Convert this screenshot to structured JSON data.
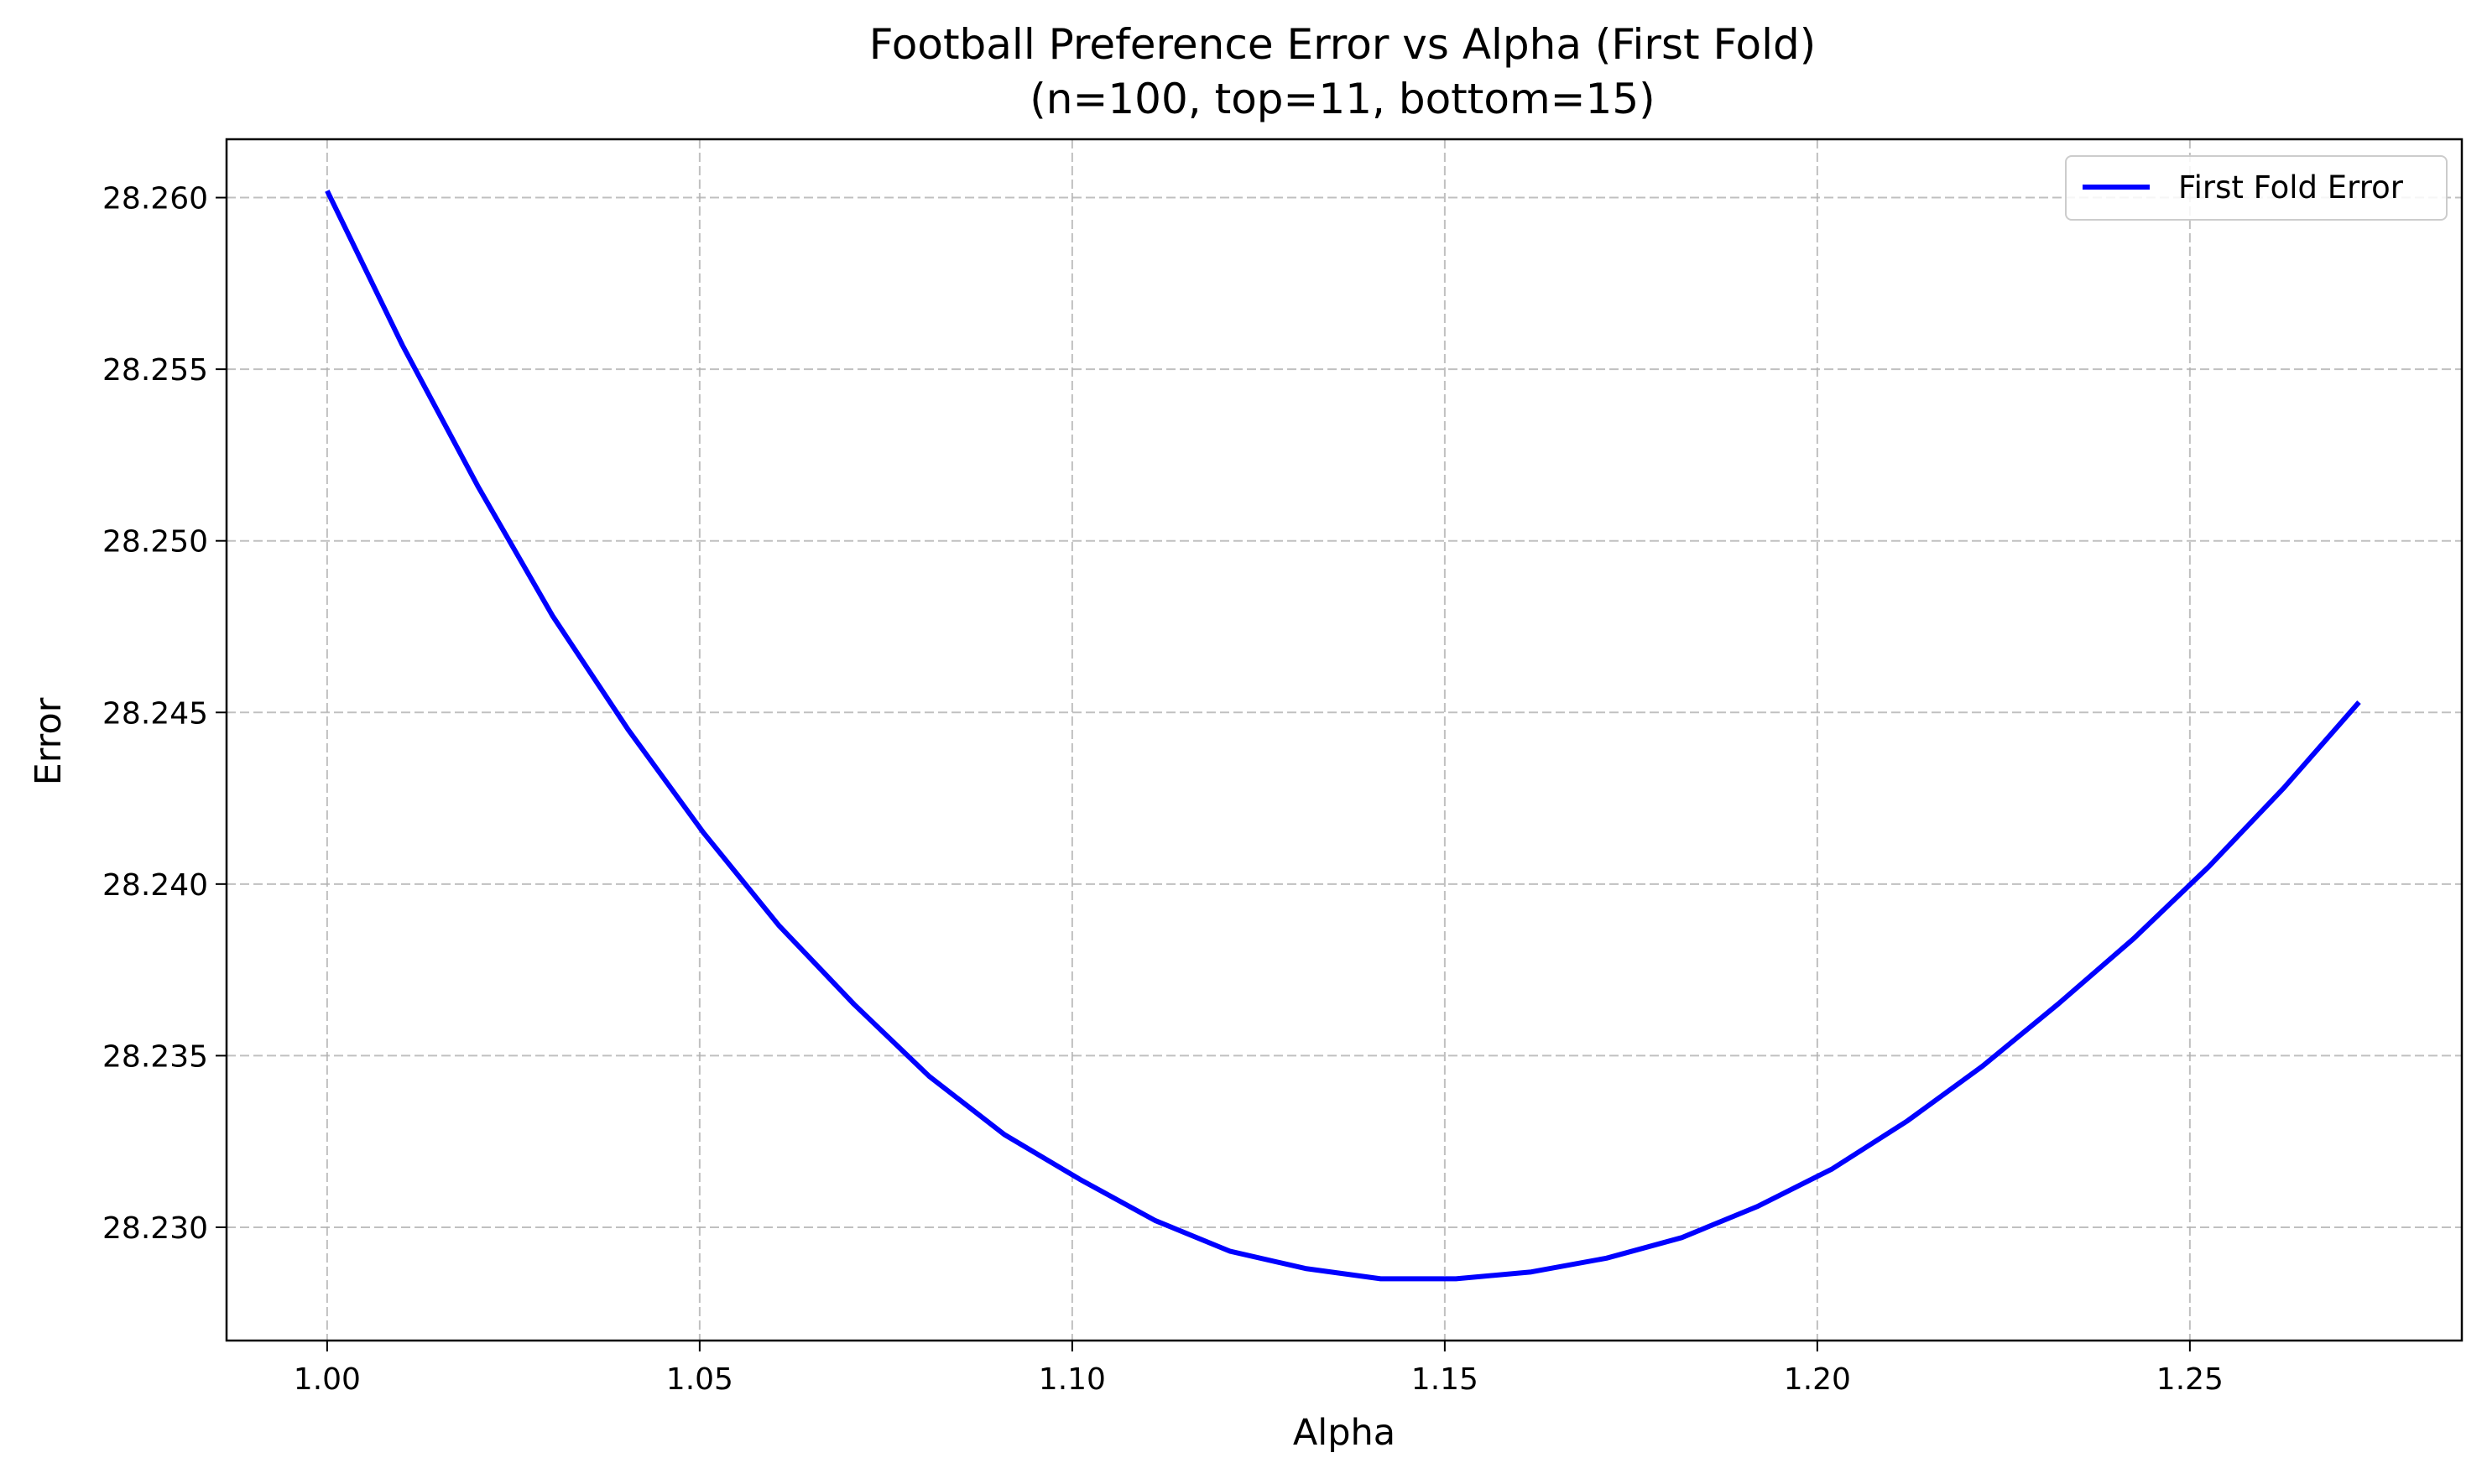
{
  "chart_data": {
    "type": "line",
    "title": "Football Preference Error vs Alpha (First Fold)",
    "subtitle": "(n=100, top=11, bottom=15)",
    "xlabel": "Alpha",
    "ylabel": "Error",
    "xlim": [
      0.9865,
      1.2865
    ],
    "ylim": [
      28.2267,
      28.2617
    ],
    "xticks": [
      1.0,
      1.05,
      1.1,
      1.15,
      1.2,
      1.25
    ],
    "xtick_labels": [
      "1.00",
      "1.05",
      "1.10",
      "1.15",
      "1.20",
      "1.25"
    ],
    "yticks": [
      28.23,
      28.235,
      28.24,
      28.245,
      28.25,
      28.255,
      28.26
    ],
    "ytick_labels": [
      "28.230",
      "28.235",
      "28.240",
      "28.245",
      "28.250",
      "28.255",
      "28.260"
    ],
    "grid": true,
    "legend_position": "top-right",
    "series": [
      {
        "name": "First Fold Error",
        "color": "#0000ff",
        "x": [
          1.0,
          1.0101,
          1.0202,
          1.0303,
          1.0404,
          1.0505,
          1.0606,
          1.0707,
          1.0808,
          1.0909,
          1.101,
          1.1111,
          1.1212,
          1.1313,
          1.1414,
          1.1515,
          1.1616,
          1.1717,
          1.1818,
          1.1919,
          1.202,
          1.2121,
          1.2222,
          1.2323,
          1.2424,
          1.2525,
          1.2626,
          1.2727
        ],
        "y": [
          28.2602,
          28.2557,
          28.2516,
          28.2478,
          28.2445,
          28.2415,
          28.2388,
          28.2365,
          28.2344,
          28.2327,
          28.2314,
          28.2302,
          28.2293,
          28.2288,
          28.2285,
          28.2285,
          28.2287,
          28.2291,
          28.2297,
          28.2306,
          28.2317,
          28.2331,
          28.2347,
          28.2365,
          28.2384,
          28.2405,
          28.2428,
          28.2453
        ]
      }
    ]
  }
}
